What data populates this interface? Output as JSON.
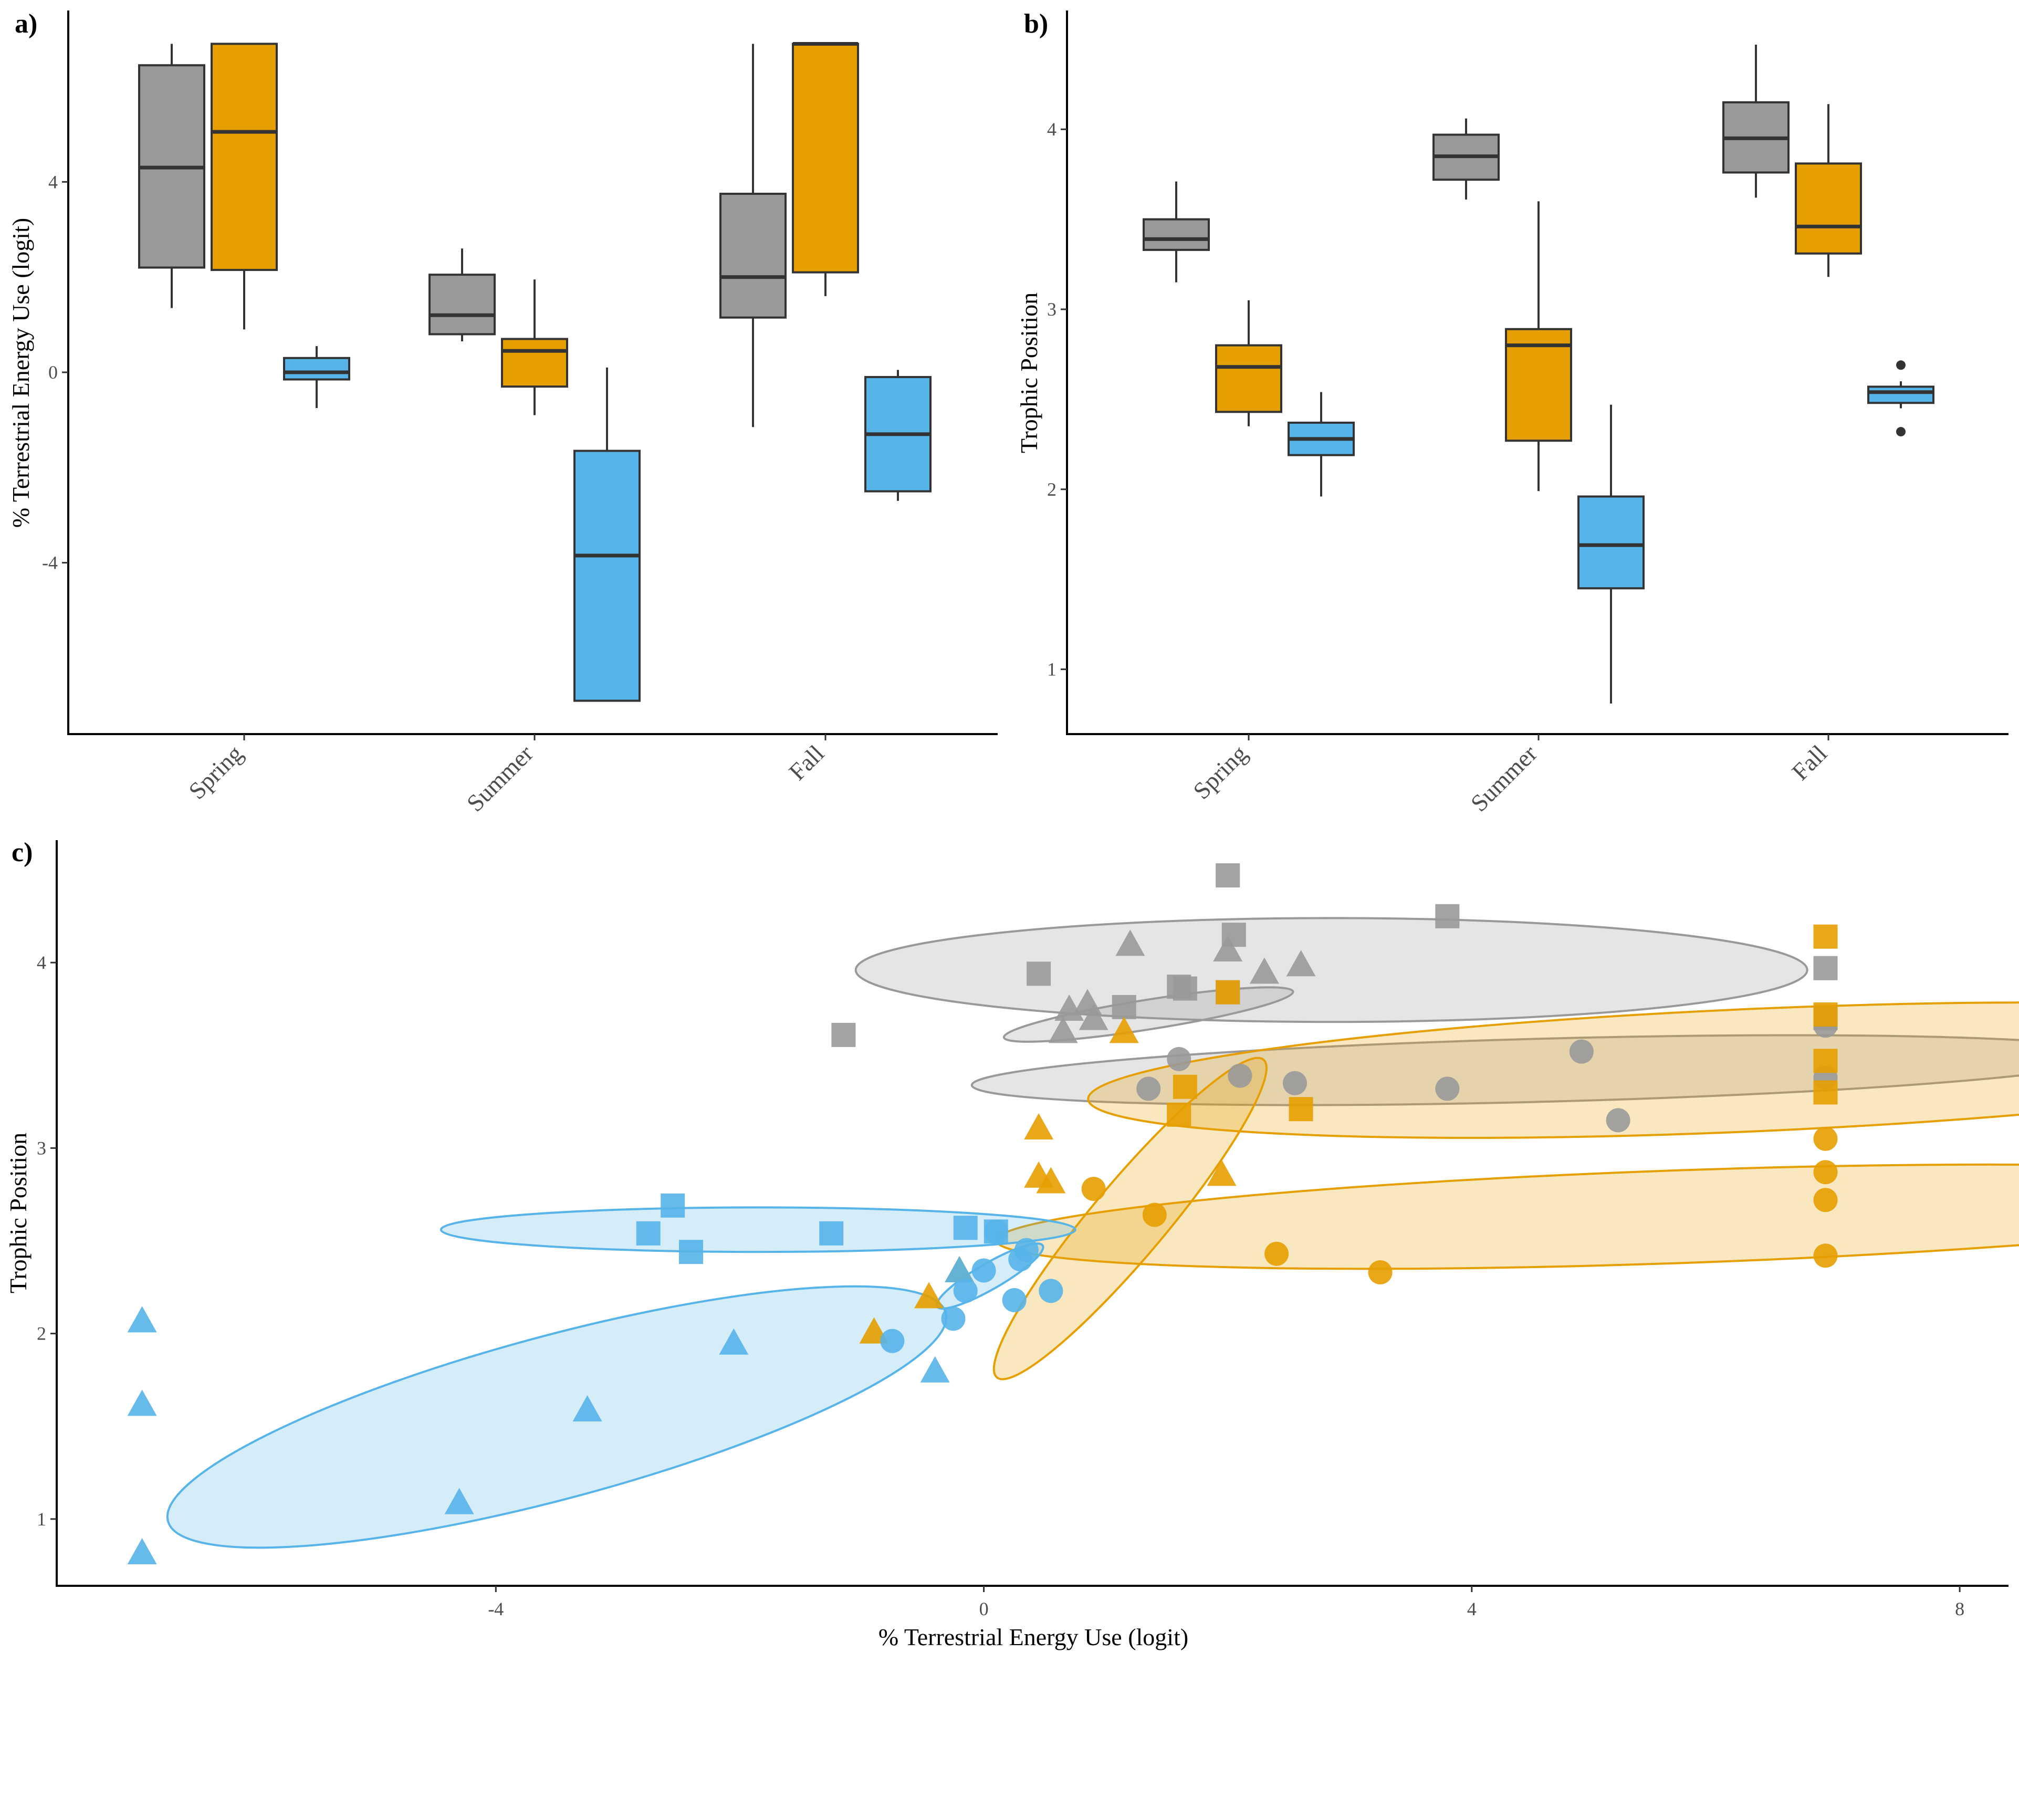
{
  "colors": {
    "gray": "#999999",
    "orange": "#E69F00",
    "blue": "#56B4E9",
    "grid_none": "",
    "axis": "#000000"
  },
  "panels": {
    "a_label": "a)",
    "b_label": "b)",
    "c_label": "c)"
  },
  "categories": [
    "Spring",
    "Summer",
    "Fall"
  ],
  "chart_data": [
    {
      "id": "a",
      "type": "box",
      "ylabel": "% Terrestrial Energy Use (logit)",
      "xlabel": "",
      "ylim": [
        -7.6,
        7.6
      ],
      "yticks": [
        -4,
        0,
        4
      ],
      "categories": [
        "Spring",
        "Summer",
        "Fall"
      ],
      "groups": [
        "gray",
        "orange",
        "blue"
      ],
      "boxes": [
        {
          "cat": "Spring",
          "group": "gray",
          "min": 1.35,
          "q1": 2.2,
          "median": 4.3,
          "q3": 6.45,
          "max": 6.9
        },
        {
          "cat": "Spring",
          "group": "orange",
          "min": 0.9,
          "q1": 2.15,
          "median": 5.05,
          "q3": 6.9,
          "max": 6.9
        },
        {
          "cat": "Spring",
          "group": "blue",
          "min": -0.75,
          "q1": -0.15,
          "median": 0.0,
          "q3": 0.3,
          "max": 0.55
        },
        {
          "cat": "Summer",
          "group": "gray",
          "min": 0.65,
          "q1": 0.8,
          "median": 1.2,
          "q3": 2.05,
          "max": 2.6
        },
        {
          "cat": "Summer",
          "group": "orange",
          "min": -0.9,
          "q1": -0.3,
          "median": 0.45,
          "q3": 0.7,
          "max": 1.95
        },
        {
          "cat": "Summer",
          "group": "blue",
          "min": -6.9,
          "q1": -6.9,
          "median": -3.85,
          "q3": -1.65,
          "max": 0.1
        },
        {
          "cat": "Fall",
          "group": "gray",
          "min": -1.15,
          "q1": 1.15,
          "median": 2.0,
          "q3": 3.75,
          "max": 6.9
        },
        {
          "cat": "Fall",
          "group": "orange",
          "min": 1.6,
          "q1": 2.1,
          "median": 6.9,
          "q3": 6.9,
          "max": 6.9
        },
        {
          "cat": "Fall",
          "group": "blue",
          "min": -2.7,
          "q1": -2.5,
          "median": -1.3,
          "q3": -0.1,
          "max": 0.05
        }
      ],
      "outliers": []
    },
    {
      "id": "b",
      "type": "box",
      "ylabel": "Trophic Position",
      "xlabel": "",
      "ylim": [
        0.64,
        4.66
      ],
      "yticks": [
        1,
        2,
        3,
        4
      ],
      "categories": [
        "Spring",
        "Summer",
        "Fall"
      ],
      "groups": [
        "gray",
        "orange",
        "blue"
      ],
      "boxes": [
        {
          "cat": "Spring",
          "group": "gray",
          "min": 3.15,
          "q1": 3.33,
          "median": 3.39,
          "q3": 3.5,
          "max": 3.71
        },
        {
          "cat": "Spring",
          "group": "orange",
          "min": 2.35,
          "q1": 2.43,
          "median": 2.68,
          "q3": 2.8,
          "max": 3.05
        },
        {
          "cat": "Spring",
          "group": "blue",
          "min": 1.96,
          "q1": 2.19,
          "median": 2.28,
          "q3": 2.37,
          "max": 2.54
        },
        {
          "cat": "Summer",
          "group": "gray",
          "min": 3.61,
          "q1": 3.72,
          "median": 3.85,
          "q3": 3.97,
          "max": 4.06
        },
        {
          "cat": "Summer",
          "group": "orange",
          "min": 1.99,
          "q1": 2.27,
          "median": 2.8,
          "q3": 2.89,
          "max": 3.6
        },
        {
          "cat": "Summer",
          "group": "blue",
          "min": 0.81,
          "q1": 1.45,
          "median": 1.69,
          "q3": 1.96,
          "max": 2.47
        },
        {
          "cat": "Fall",
          "group": "gray",
          "min": 3.62,
          "q1": 3.76,
          "median": 3.95,
          "q3": 4.15,
          "max": 4.47
        },
        {
          "cat": "Fall",
          "group": "orange",
          "min": 3.18,
          "q1": 3.31,
          "median": 3.46,
          "q3": 3.81,
          "max": 4.14
        },
        {
          "cat": "Fall",
          "group": "blue",
          "min": 2.45,
          "q1": 2.48,
          "median": 2.54,
          "q3": 2.57,
          "max": 2.6
        }
      ],
      "outliers": [
        {
          "cat": "Fall",
          "group": "blue",
          "value": 2.69
        },
        {
          "cat": "Fall",
          "group": "blue",
          "value": 2.32
        }
      ]
    },
    {
      "id": "c",
      "type": "scatter",
      "xlabel": "% Terrestrial Energy Use (logit)",
      "ylabel": "Trophic Position",
      "xlim": [
        -7.6,
        8.4
      ],
      "ylim": [
        0.64,
        4.66
      ],
      "xticks": [
        -4,
        0,
        4,
        8
      ],
      "yticks": [
        1,
        2,
        3,
        4
      ],
      "shapes": {
        "Spring": "triangle",
        "Summer": "circle",
        "Fall": "square"
      },
      "series": [
        {
          "group": "gray",
          "season": "Fall",
          "points": [
            [
              2.0,
              4.47
            ],
            [
              3.8,
              4.25
            ],
            [
              2.05,
              4.15
            ],
            [
              0.45,
              3.94
            ],
            [
              1.15,
              3.76
            ],
            [
              1.6,
              3.87
            ],
            [
              1.65,
              3.86
            ],
            [
              2.0,
              3.84
            ],
            [
              -1.15,
              3.61
            ],
            [
              6.9,
              3.97
            ],
            [
              6.9,
              3.7
            ]
          ]
        },
        {
          "group": "gray",
          "season": "Spring",
          "points": [
            [
              1.2,
              4.09
            ],
            [
              2.0,
              4.06
            ],
            [
              2.3,
              3.94
            ],
            [
              2.6,
              3.98
            ],
            [
              0.7,
              3.74
            ],
            [
              0.85,
              3.77
            ],
            [
              0.9,
              3.69
            ],
            [
              0.65,
              3.62
            ]
          ]
        },
        {
          "group": "gray",
          "season": "Summer",
          "points": [
            [
              1.6,
              3.48
            ],
            [
              1.35,
              3.32
            ],
            [
              2.1,
              3.39
            ],
            [
              2.55,
              3.35
            ],
            [
              3.8,
              3.32
            ],
            [
              4.9,
              3.52
            ],
            [
              5.2,
              3.15
            ],
            [
              6.9,
              3.66
            ],
            [
              6.9,
              3.38
            ]
          ]
        },
        {
          "group": "orange",
          "season": "Fall",
          "points": [
            [
              6.9,
              4.14
            ],
            [
              6.9,
              3.72
            ],
            [
              6.9,
              3.47
            ],
            [
              6.9,
              3.3
            ],
            [
              2.0,
              3.84
            ],
            [
              1.65,
              3.33
            ],
            [
              1.6,
              3.18
            ],
            [
              2.6,
              3.21
            ]
          ]
        },
        {
          "group": "orange",
          "season": "Spring",
          "points": [
            [
              0.45,
              3.1
            ],
            [
              0.45,
              2.84
            ],
            [
              0.55,
              2.81
            ],
            [
              1.15,
              3.62
            ],
            [
              1.95,
              2.85
            ],
            [
              -0.2,
              2.33
            ],
            [
              -0.45,
              2.19
            ],
            [
              -0.9,
              2.0
            ]
          ]
        },
        {
          "group": "orange",
          "season": "Summer",
          "points": [
            [
              6.9,
              3.05
            ],
            [
              6.9,
              2.87
            ],
            [
              6.9,
              2.72
            ],
            [
              6.9,
              2.42
            ],
            [
              0.9,
              2.78
            ],
            [
              1.4,
              2.64
            ],
            [
              2.4,
              2.43
            ],
            [
              3.25,
              2.33
            ]
          ]
        },
        {
          "group": "blue",
          "season": "Fall",
          "points": [
            [
              -2.55,
              2.69
            ],
            [
              -2.75,
              2.54
            ],
            [
              -2.4,
              2.44
            ],
            [
              -1.25,
              2.54
            ],
            [
              -0.15,
              2.57
            ],
            [
              0.1,
              2.55
            ]
          ]
        },
        {
          "group": "blue",
          "season": "Spring",
          "points": [
            [
              -6.9,
              2.06
            ],
            [
              -6.9,
              1.61
            ],
            [
              -6.9,
              0.81
            ],
            [
              -2.05,
              1.94
            ],
            [
              -3.25,
              1.58
            ],
            [
              -4.3,
              1.08
            ],
            [
              -0.4,
              1.79
            ],
            [
              -0.2,
              2.33
            ]
          ]
        },
        {
          "group": "blue",
          "season": "Summer",
          "points": [
            [
              -0.75,
              1.96
            ],
            [
              -0.25,
              2.08
            ],
            [
              0.25,
              2.18
            ],
            [
              0.55,
              2.23
            ],
            [
              -0.15,
              2.23
            ],
            [
              0.0,
              2.34
            ],
            [
              0.35,
              2.45
            ],
            [
              0.3,
              2.4
            ],
            [
              0.1,
              2.55
            ]
          ]
        }
      ],
      "ellipses": [
        {
          "group": "gray",
          "cx": 2.85,
          "cy": 3.96,
          "rx": 3.9,
          "ry": 0.28,
          "angle": 0
        },
        {
          "group": "gray",
          "cx": 1.35,
          "cy": 3.72,
          "rx": 1.2,
          "ry": 0.08,
          "angle": -9
        },
        {
          "group": "gray",
          "cx": 4.6,
          "cy": 3.42,
          "rx": 4.7,
          "ry": 0.17,
          "angle": -1.5
        },
        {
          "group": "orange",
          "cx": 6.3,
          "cy": 3.42,
          "rx": 5.45,
          "ry": 0.33,
          "angle": -2.5
        },
        {
          "group": "orange",
          "cx": 1.2,
          "cy": 2.62,
          "rx": 1.7,
          "ry": 0.2,
          "angle": -50
        },
        {
          "group": "orange",
          "cx": 5.7,
          "cy": 2.63,
          "rx": 5.6,
          "ry": 0.25,
          "angle": -2
        },
        {
          "group": "blue",
          "cx": -1.85,
          "cy": 2.56,
          "rx": 2.6,
          "ry": 0.12,
          "angle": 0
        },
        {
          "group": "blue",
          "cx": 0.05,
          "cy": 2.31,
          "rx": 0.5,
          "ry": 0.07,
          "angle": -30
        },
        {
          "group": "blue",
          "cx": -3.5,
          "cy": 1.55,
          "rx": 3.3,
          "ry": 0.44,
          "angle": -15
        }
      ]
    }
  ]
}
